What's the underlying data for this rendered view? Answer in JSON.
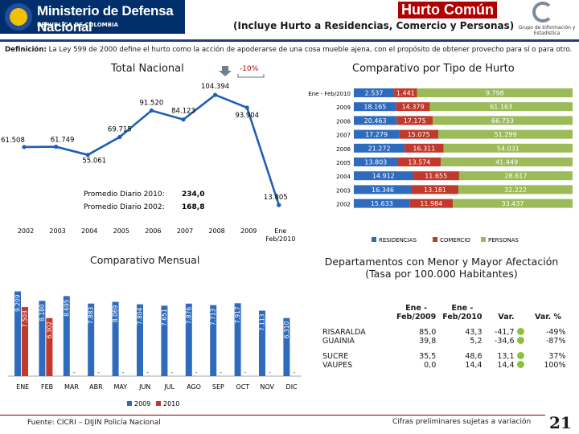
{
  "header": {
    "ministry_name": "Ministerio de Defensa Nacional",
    "ministry_country": "REPUBLICA DE COLOMBIA",
    "title": "Hurto Común",
    "subtitle": "(Incluye Hurto a Residencias, Comercio y Personas)",
    "logo_caption": "Grupo de Información y Estadística"
  },
  "definition": {
    "label": "Definición:",
    "text": "La Ley 599 de 2000 define el hurto como la acción de apoderarse de una cosa mueble ajena, con el propósito de obtener provecho para sí o para otro."
  },
  "footer": {
    "source": "Fuente: CICRI – DIJIN Policía Nacional",
    "note": "Cifras preliminares sujetas a variación",
    "page": "21"
  },
  "chart_data": [
    {
      "id": "total-nacional",
      "type": "line",
      "title": "Total Nacional",
      "x": [
        "2002",
        "2003",
        "2004",
        "2005",
        "2006",
        "2007",
        "2008",
        "2009",
        "Ene - Feb/2010"
      ],
      "x_labels": [
        "2002",
        "2003",
        "2004",
        "2005",
        "2006",
        "2007",
        "2008",
        "2009",
        "Ene"
      ],
      "x_label_sub": "Feb/2010",
      "values": [
        61508,
        61749,
        55061,
        69715,
        91520,
        84123,
        104394,
        93904,
        13805
      ],
      "value_labels": [
        "61.508",
        "61.749",
        "55.061",
        "69.715",
        "91.520",
        "84.123",
        "104.394",
        "93.904",
        "13.805"
      ],
      "ylim": [
        0,
        115000
      ],
      "color": "#1e5fb4",
      "change_label": "-10%",
      "daily": [
        {
          "label": "Promedio Diario 2010:",
          "value": "234,0"
        },
        {
          "label": "Promedio Diario 2002:",
          "value": "168,8"
        }
      ]
    },
    {
      "id": "tipo-hurto",
      "type": "bar",
      "stacked": true,
      "orientation": "horizontal",
      "title": "Comparativo por Tipo de Hurto",
      "categories": [
        "Ene - Feb/2010",
        "2009",
        "2008",
        "2007",
        "2006",
        "2005",
        "2004",
        "2003",
        "2002"
      ],
      "series": [
        {
          "name": "RESIDENCIAS",
          "color": "#2f6bbd",
          "values": [
            2537,
            18165,
            20463,
            17279,
            21272,
            13803,
            14912,
            16346,
            15633
          ],
          "labels": [
            "2.537",
            "18.165",
            "20.463",
            "17.279",
            "21.272",
            "13.803",
            "14.912",
            "16.346",
            "15.633"
          ]
        },
        {
          "name": "COMERCIO",
          "color": "#c0392b",
          "values": [
            1441,
            14379,
            17175,
            15075,
            16311,
            13574,
            11655,
            13181,
            11984
          ],
          "labels": [
            "1.441",
            "14.379",
            "17.175",
            "15.075",
            "16.311",
            "13.574",
            "11.655",
            "13.181",
            "11.984"
          ]
        },
        {
          "name": "PERSONAS",
          "color": "#9bbb59",
          "values": [
            9798,
            61163,
            66753,
            51299,
            54031,
            41449,
            28617,
            32222,
            33437
          ],
          "labels": [
            "9.798",
            "61.163",
            "66.753",
            "51.299",
            "54.031",
            "41.449",
            "28.617",
            "32.222",
            "33.437"
          ]
        }
      ]
    },
    {
      "id": "comparativo-mensual",
      "type": "bar",
      "title": "Comparativo Mensual",
      "categories": [
        "ENE",
        "FEB",
        "MAR",
        "ABR",
        "MAY",
        "JUN",
        "JUL",
        "AGO",
        "SEP",
        "OCT",
        "NOV",
        "DIC"
      ],
      "ylim": [
        0,
        11000
      ],
      "series": [
        {
          "name": "2009",
          "color": "#2f6bbd",
          "values": [
            9209,
            8180,
            8695,
            7883,
            8069,
            7804,
            7651,
            7876,
            7713,
            7917,
            7113,
            6310
          ],
          "labels": [
            "9.209",
            "8.180",
            "8.695",
            "7.883",
            "8.069",
            "7.804",
            "7.651",
            "7.876",
            "7.713",
            "7.917",
            "7.113",
            "6.310"
          ]
        },
        {
          "name": "2010",
          "color": "#c0392b",
          "values": [
            7503,
            6302,
            null,
            null,
            null,
            null,
            null,
            null,
            null,
            null,
            null,
            null
          ],
          "labels": [
            "7.503",
            "6.302",
            "",
            "",
            "",
            "",
            "",
            "",
            "",
            "",
            "",
            ""
          ]
        }
      ]
    }
  ],
  "departamentos": {
    "title_line1": "Departamentos con Menor y Mayor Afectación",
    "title_line2": "(Tasa por 100.000 Habitantes)",
    "headers": {
      "c1": "Ene - Feb/2009",
      "c2": "Ene - Feb/2010",
      "c3": "Var.",
      "c4": "Var. %"
    },
    "rows": [
      {
        "dep": "RISARALDA",
        "v2009": "85,0",
        "v2010": "43,3",
        "var": "-41,7",
        "pct": "-49%"
      },
      {
        "dep": "GUAINIA",
        "v2009": "39,8",
        "v2010": "5,2",
        "var": "-34,6",
        "pct": "-87%"
      },
      {
        "dep": "SUCRE",
        "v2009": "35,5",
        "v2010": "48,6",
        "var": "13,1",
        "pct": "37%"
      },
      {
        "dep": "VAUPES",
        "v2009": "0,0",
        "v2010": "14,4",
        "var": "14,4",
        "pct": "100%"
      }
    ],
    "dot_color": "#8fbf3f"
  }
}
